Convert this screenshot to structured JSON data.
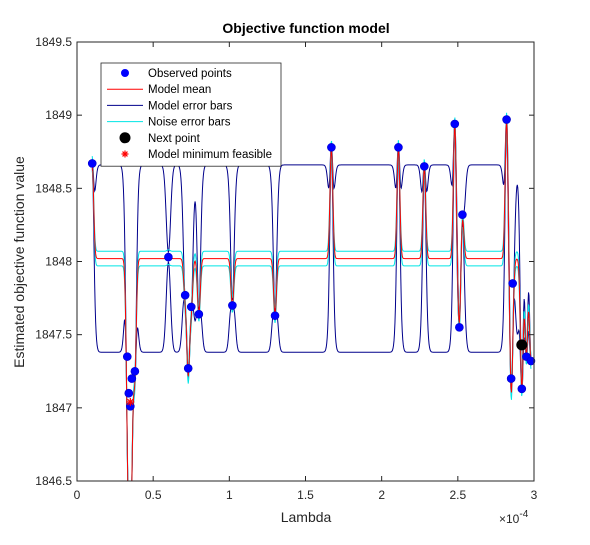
{
  "chart_data": {
    "type": "line",
    "title": "Objective function model",
    "xlabel": "Lambda",
    "ylabel": "Estimated objective function value",
    "x_exponent_label": "×10",
    "x_exponent_power": "-4",
    "xlim": [
      0,
      3
    ],
    "ylim": [
      1846.5,
      1849.5
    ],
    "x_ticks": [
      0,
      0.5,
      1,
      1.5,
      2,
      2.5,
      3
    ],
    "x_tick_labels": [
      "0",
      "0.5",
      "1",
      "1.5",
      "2",
      "2.5",
      "3"
    ],
    "y_ticks": [
      1846.5,
      1847,
      1847.5,
      1848,
      1848.5,
      1849,
      1849.5
    ],
    "y_tick_labels": [
      "1846.5",
      "1847",
      "1847.5",
      "1848",
      "1848.5",
      "1849",
      "1849.5"
    ],
    "grid": false,
    "legend_placement": "top-left",
    "legend": [
      {
        "label": "Observed points",
        "marker": "dot",
        "color": "#0000ff"
      },
      {
        "label": "Model mean",
        "marker": "line",
        "color": "#ff0000"
      },
      {
        "label": "Model error bars",
        "marker": "line",
        "color": "#00008b"
      },
      {
        "label": "Noise error bars",
        "marker": "line",
        "color": "#00e5e5"
      },
      {
        "label": "Next point",
        "marker": "bigdot",
        "color": "#000000"
      },
      {
        "label": "Model minimum feasible",
        "marker": "star",
        "color": "#ff0000"
      }
    ],
    "mean_baseline": 1848.02,
    "model_error_band": [
      1847.38,
      1848.66
    ],
    "noise_band_halfwidth": 0.05,
    "observed_points": [
      {
        "x": 0.1,
        "y": 1848.67
      },
      {
        "x": 0.33,
        "y": 1847.35
      },
      {
        "x": 0.34,
        "y": 1847.1
      },
      {
        "x": 0.35,
        "y": 1847.01
      },
      {
        "x": 0.36,
        "y": 1847.2
      },
      {
        "x": 0.38,
        "y": 1847.25
      },
      {
        "x": 0.6,
        "y": 1848.03
      },
      {
        "x": 0.71,
        "y": 1847.77
      },
      {
        "x": 0.73,
        "y": 1847.27
      },
      {
        "x": 0.75,
        "y": 1847.69
      },
      {
        "x": 0.8,
        "y": 1847.64
      },
      {
        "x": 1.02,
        "y": 1847.7
      },
      {
        "x": 1.3,
        "y": 1847.63
      },
      {
        "x": 1.67,
        "y": 1848.78
      },
      {
        "x": 2.11,
        "y": 1848.78
      },
      {
        "x": 2.28,
        "y": 1848.65
      },
      {
        "x": 2.48,
        "y": 1848.94
      },
      {
        "x": 2.51,
        "y": 1847.55
      },
      {
        "x": 2.53,
        "y": 1848.32
      },
      {
        "x": 2.82,
        "y": 1848.97
      },
      {
        "x": 2.85,
        "y": 1847.2
      },
      {
        "x": 2.86,
        "y": 1847.85
      },
      {
        "x": 2.92,
        "y": 1847.13
      },
      {
        "x": 2.95,
        "y": 1847.35
      },
      {
        "x": 2.98,
        "y": 1847.32
      }
    ],
    "next_point": {
      "x": 2.92,
      "y": 1847.43
    },
    "model_minimum_feasible": {
      "x": 0.35,
      "y": 1847.04
    }
  }
}
